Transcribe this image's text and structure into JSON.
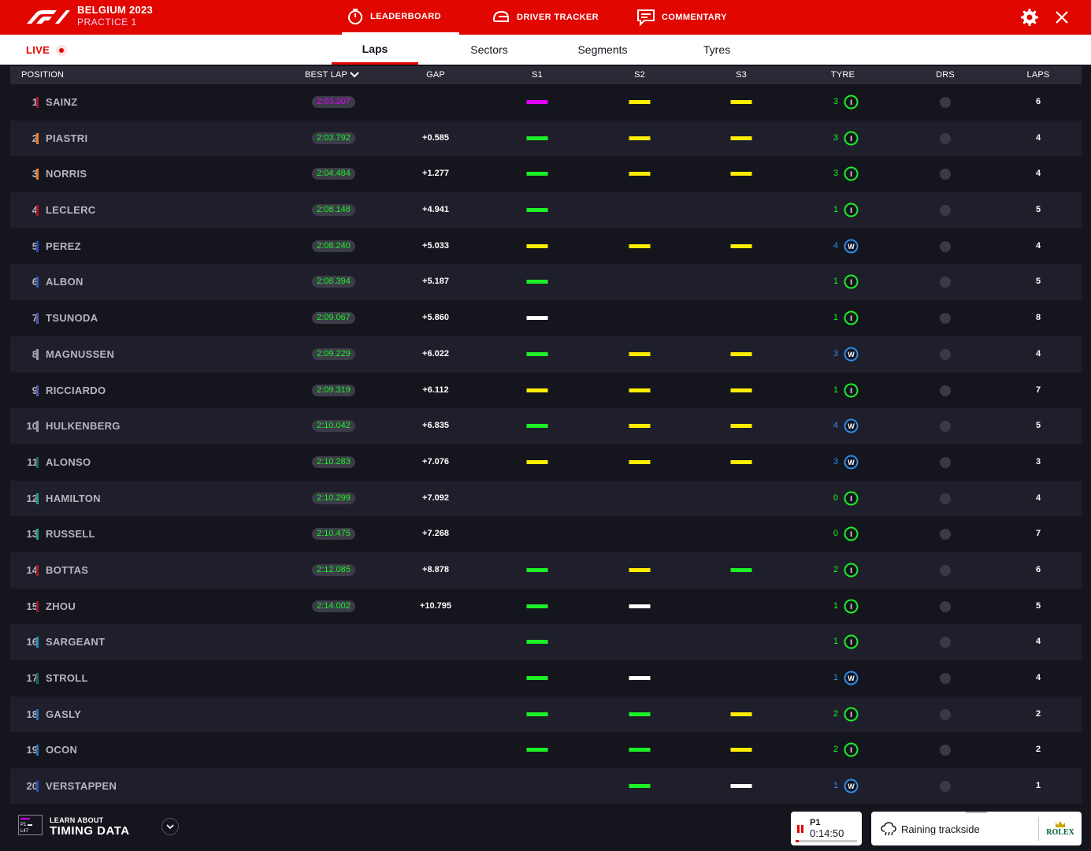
{
  "header": {
    "event_title": "BELGIUM 2023",
    "session_name": "PRACTICE 1",
    "nav": [
      {
        "label": "LEADERBOARD",
        "icon": "stopwatch-icon",
        "active": true
      },
      {
        "label": "DRIVER TRACKER",
        "icon": "helmet-icon",
        "active": false
      },
      {
        "label": "COMMENTARY",
        "icon": "chat-icon",
        "active": false
      }
    ],
    "settings_icon": "gear-icon",
    "close_icon": "close-icon",
    "accent": "#e10600"
  },
  "subnav": {
    "live_label": "LIVE",
    "tabs": [
      {
        "label": "Laps",
        "active": true
      },
      {
        "label": "Sectors",
        "active": false
      },
      {
        "label": "Segments",
        "active": false
      },
      {
        "label": "Tyres",
        "active": false
      }
    ]
  },
  "table": {
    "columns": {
      "position": "POSITION",
      "best_lap": "BEST LAP",
      "gap": "GAP",
      "s1": "S1",
      "s2": "S2",
      "s3": "S3",
      "tyre": "TYRE",
      "drs": "DRS",
      "laps": "LAPS"
    },
    "sector_colors": {
      "purple": "#e100ff",
      "green": "#1cf026",
      "yellow": "#ffee00",
      "white": "#ffffff"
    },
    "tyre_colors": {
      "I": "#1cf026",
      "W": "#2a8cf0"
    },
    "rows": [
      {
        "pos": "1",
        "driver": "SAINZ",
        "team_color": "#b0102a",
        "best_lap": "2:03.207",
        "best_purple": true,
        "gap": "",
        "s1": "purple",
        "s2": "yellow",
        "s3": "yellow",
        "tyre": "I",
        "tyre_age": "3",
        "laps": "6"
      },
      {
        "pos": "2",
        "driver": "PIASTRI",
        "team_color": "#e8802a",
        "best_lap": "2:03.792",
        "gap": "+0.585",
        "s1": "green",
        "s2": "yellow",
        "s3": "yellow",
        "tyre": "I",
        "tyre_age": "3",
        "laps": "4"
      },
      {
        "pos": "3",
        "driver": "NORRIS",
        "team_color": "#e8802a",
        "best_lap": "2:04.484",
        "gap": "+1.277",
        "s1": "green",
        "s2": "yellow",
        "s3": "yellow",
        "tyre": "I",
        "tyre_age": "3",
        "laps": "4"
      },
      {
        "pos": "4",
        "driver": "LECLERC",
        "team_color": "#b0102a",
        "best_lap": "2:08.148",
        "gap": "+4.941",
        "s1": "green",
        "s2": "",
        "s3": "",
        "tyre": "I",
        "tyre_age": "1",
        "laps": "5"
      },
      {
        "pos": "5",
        "driver": "PEREZ",
        "team_color": "#2a4fb0",
        "best_lap": "2:08.240",
        "gap": "+5.033",
        "s1": "yellow",
        "s2": "yellow",
        "s3": "yellow",
        "tyre": "W",
        "tyre_age": "4",
        "laps": "4"
      },
      {
        "pos": "6",
        "driver": "ALBON",
        "team_color": "#2a5fb0",
        "best_lap": "2:08.394",
        "gap": "+5.187",
        "s1": "green",
        "s2": "",
        "s3": "",
        "tyre": "I",
        "tyre_age": "1",
        "laps": "5"
      },
      {
        "pos": "7",
        "driver": "TSUNODA",
        "team_color": "#4a5ab0",
        "best_lap": "2:09.067",
        "gap": "+5.860",
        "s1": "white",
        "s2": "",
        "s3": "",
        "tyre": "I",
        "tyre_age": "1",
        "laps": "8"
      },
      {
        "pos": "8",
        "driver": "MAGNUSSEN",
        "team_color": "#9a9aa5",
        "best_lap": "2:09.229",
        "gap": "+6.022",
        "s1": "green",
        "s2": "yellow",
        "s3": "yellow",
        "tyre": "W",
        "tyre_age": "3",
        "laps": "4"
      },
      {
        "pos": "9",
        "driver": "RICCIARDO",
        "team_color": "#4a5ab0",
        "best_lap": "2:09.319",
        "gap": "+6.112",
        "s1": "yellow",
        "s2": "yellow",
        "s3": "yellow",
        "tyre": "I",
        "tyre_age": "1",
        "laps": "7"
      },
      {
        "pos": "10",
        "driver": "HULKENBERG",
        "team_color": "#9a9aa5",
        "best_lap": "2:10.042",
        "gap": "+6.835",
        "s1": "green",
        "s2": "yellow",
        "s3": "yellow",
        "tyre": "W",
        "tyre_age": "4",
        "laps": "5"
      },
      {
        "pos": "11",
        "driver": "ALONSO",
        "team_color": "#1f6b55",
        "best_lap": "2:10.283",
        "gap": "+7.076",
        "s1": "yellow",
        "s2": "yellow",
        "s3": "yellow",
        "tyre": "W",
        "tyre_age": "3",
        "laps": "3"
      },
      {
        "pos": "12",
        "driver": "HAMILTON",
        "team_color": "#2a9a8a",
        "best_lap": "2:10.299",
        "gap": "+7.092",
        "s1": "",
        "s2": "",
        "s3": "",
        "tyre": "I",
        "tyre_age": "0",
        "laps": "4"
      },
      {
        "pos": "13",
        "driver": "RUSSELL",
        "team_color": "#2a9a8a",
        "best_lap": "2:10.475",
        "gap": "+7.268",
        "s1": "",
        "s2": "",
        "s3": "",
        "tyre": "I",
        "tyre_age": "0",
        "laps": "7"
      },
      {
        "pos": "14",
        "driver": "BOTTAS",
        "team_color": "#9a1a2a",
        "best_lap": "2:12.085",
        "gap": "+8.878",
        "s1": "green",
        "s2": "yellow",
        "s3": "green",
        "tyre": "I",
        "tyre_age": "2",
        "laps": "6"
      },
      {
        "pos": "15",
        "driver": "ZHOU",
        "team_color": "#9a1a2a",
        "best_lap": "2:14.002",
        "gap": "+10.795",
        "s1": "green",
        "s2": "white",
        "s3": "",
        "tyre": "I",
        "tyre_age": "1",
        "laps": "5"
      },
      {
        "pos": "16",
        "driver": "SARGEANT",
        "team_color": "#2a8ab0",
        "best_lap": "",
        "gap": "",
        "s1": "green",
        "s2": "",
        "s3": "",
        "tyre": "I",
        "tyre_age": "1",
        "laps": "4"
      },
      {
        "pos": "17",
        "driver": "STROLL",
        "team_color": "#1f6b55",
        "best_lap": "",
        "gap": "",
        "s1": "green",
        "s2": "white",
        "s3": "",
        "tyre": "W",
        "tyre_age": "1",
        "laps": "4"
      },
      {
        "pos": "18",
        "driver": "GASLY",
        "team_color": "#2a70b0",
        "best_lap": "",
        "gap": "",
        "s1": "green",
        "s2": "green",
        "s3": "yellow",
        "tyre": "I",
        "tyre_age": "2",
        "laps": "2"
      },
      {
        "pos": "19",
        "driver": "OCON",
        "team_color": "#2a70b0",
        "best_lap": "",
        "gap": "",
        "s1": "green",
        "s2": "green",
        "s3": "yellow",
        "tyre": "I",
        "tyre_age": "2",
        "laps": "2"
      },
      {
        "pos": "20",
        "driver": "VERSTAPPEN",
        "team_color": "#2a4fb0",
        "best_lap": "",
        "gap": "",
        "s1": "",
        "s2": "green",
        "s3": "white",
        "tyre": "W",
        "tyre_age": "1",
        "laps": "1"
      }
    ]
  },
  "footer": {
    "learn_line1": "LEARN ABOUT",
    "learn_line2": "TIMING DATA",
    "session_short": "P1",
    "clock": "0:14:50",
    "clock_progress": 0.05,
    "weather": "Raining trackside",
    "sponsor": "ROLEX"
  }
}
